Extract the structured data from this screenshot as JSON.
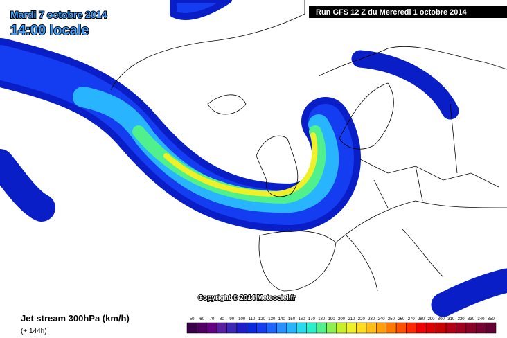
{
  "header": {
    "date": "Mardi 7 octobre 2014",
    "time": "14:00 locale",
    "run": "Run GFS 12 Z du Mercredi 1 octobre 2014"
  },
  "copyright": "Copyright © 2014 Meteociel.fr",
  "legend": {
    "title": "Jet stream 300hPa (km/h)",
    "lead": "(+ 144h)",
    "ticks": [
      50,
      60,
      70,
      80,
      90,
      100,
      110,
      120,
      130,
      140,
      150,
      160,
      170,
      180,
      190,
      200,
      210,
      220,
      230,
      240,
      250,
      260,
      270,
      280,
      290,
      300,
      310,
      320,
      330,
      340,
      350
    ],
    "colors": [
      "#3a0048",
      "#500064",
      "#640082",
      "#5a1ea0",
      "#3c28b4",
      "#1e1ec8",
      "#0a28dc",
      "#143cf0",
      "#1e64ff",
      "#2890ff",
      "#28b4ff",
      "#28dcf0",
      "#28f0c8",
      "#50f08c",
      "#8cf050",
      "#c8f028",
      "#f0f028",
      "#ffdc1e",
      "#ffbe14",
      "#ffa00a",
      "#ff7800",
      "#ff5000",
      "#ff2800",
      "#f00000",
      "#dc0000",
      "#c80000",
      "#b40014",
      "#a0001e",
      "#8c0028",
      "#780032",
      "#640032"
    ]
  }
}
